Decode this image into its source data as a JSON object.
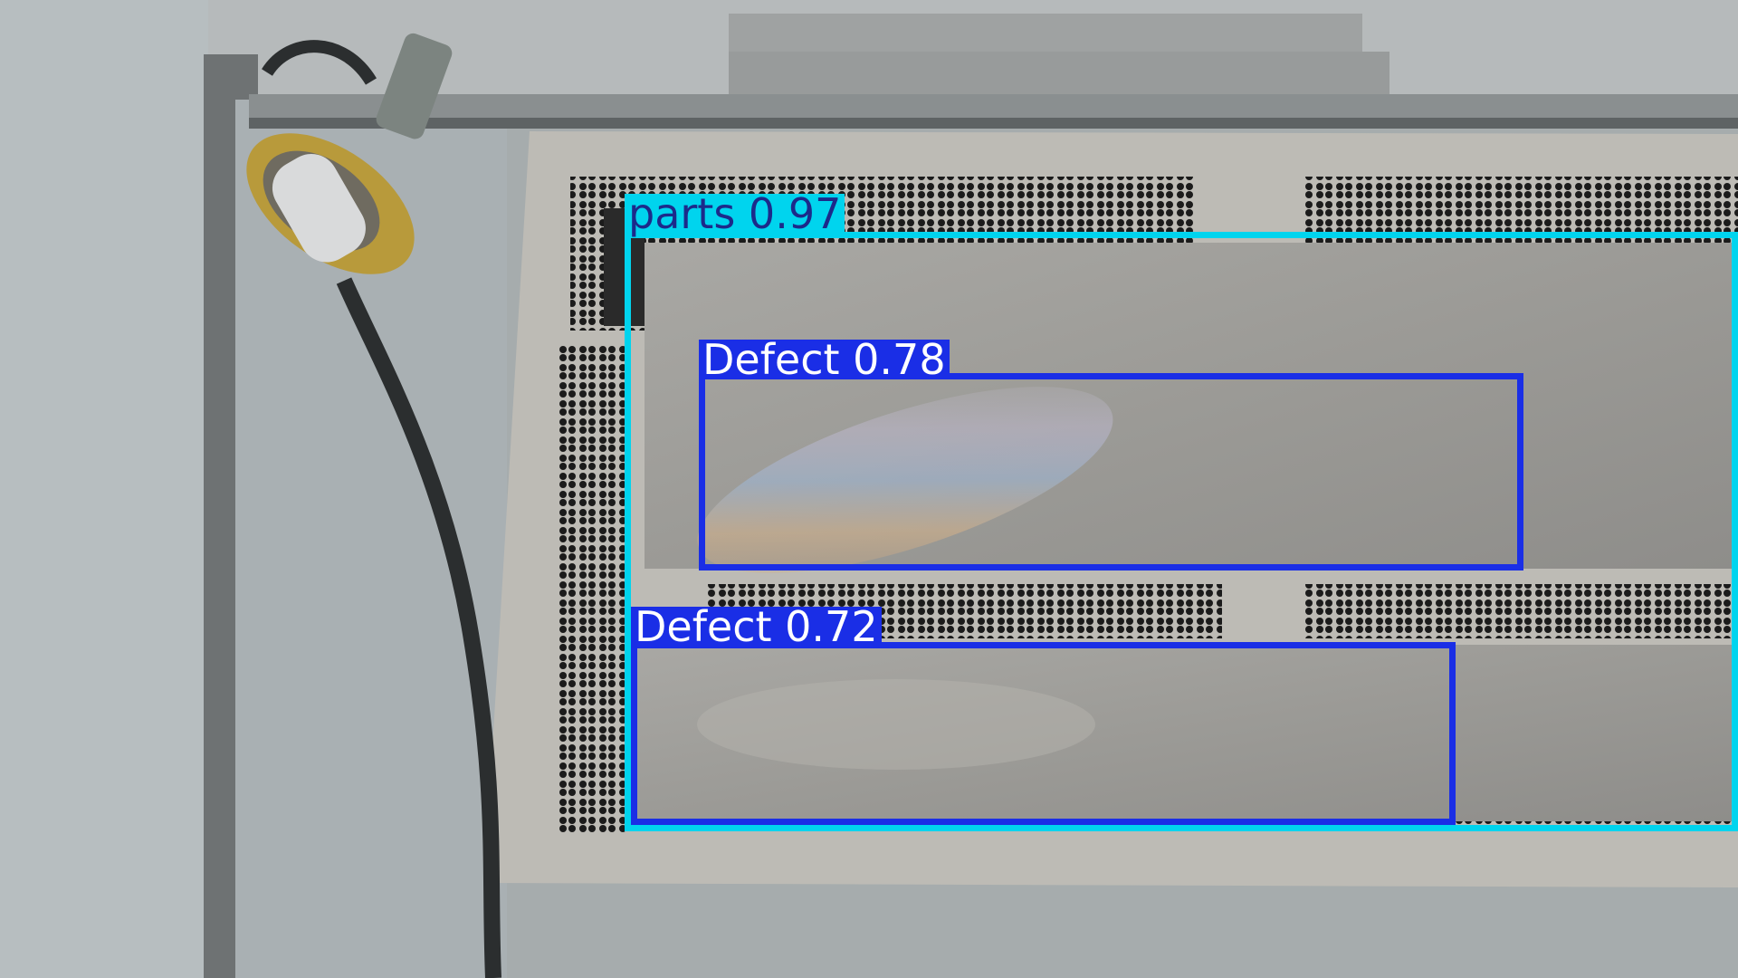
{
  "detections": [
    {
      "label": "parts",
      "confidence": "0.97",
      "color": "#00d4ee",
      "label_text_color": "#1c2a8a"
    },
    {
      "label": "Defect",
      "confidence": "0.78",
      "color": "#1a2ee6",
      "label_text_color": "#ffffff"
    },
    {
      "label": "Defect",
      "confidence": "0.72",
      "color": "#1a2ee6",
      "label_text_color": "#ffffff"
    }
  ],
  "labels": {
    "parts": "parts  0.97",
    "defect_upper": "Defect  0.78",
    "defect_lower": "Defect  0.72"
  }
}
